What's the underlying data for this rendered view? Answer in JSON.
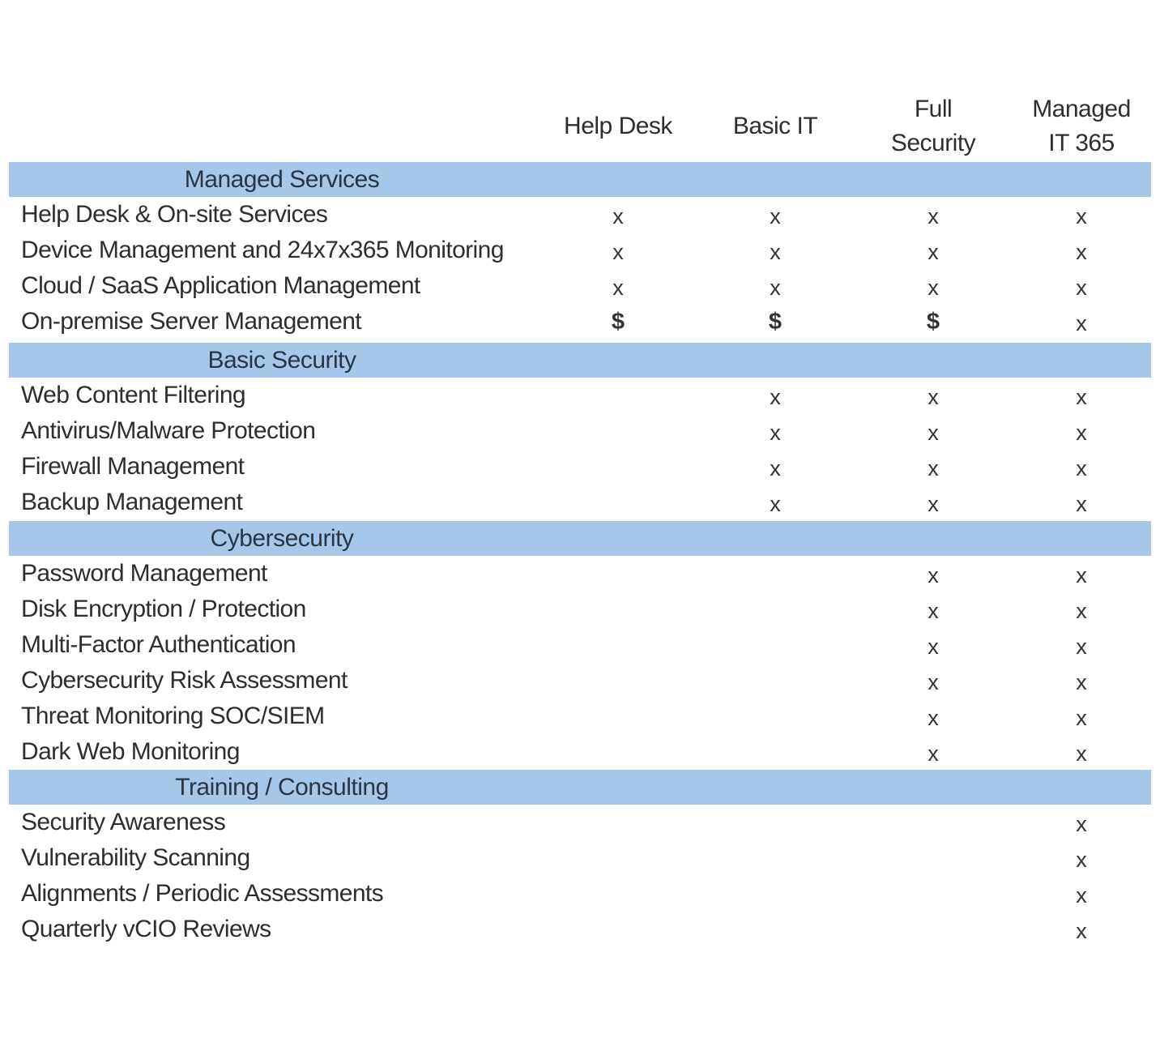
{
  "columns": [
    {
      "id": "help-desk",
      "label": "Help Desk"
    },
    {
      "id": "basic-it",
      "label": "Basic IT"
    },
    {
      "id": "full-security",
      "label": "Full\nSecurity"
    },
    {
      "id": "managed-it-365",
      "label": "Managed\nIT 365"
    }
  ],
  "sections": [
    {
      "title": "Managed Services",
      "rows": [
        {
          "label": "Help Desk & On-site Services",
          "values": [
            "x",
            "x",
            "x",
            "x"
          ]
        },
        {
          "label": "Device Management and 24x7x365 Monitoring",
          "values": [
            "x",
            "x",
            "x",
            "x"
          ]
        },
        {
          "label": "Cloud / SaaS Application Management",
          "values": [
            "x",
            "x",
            "x",
            "x"
          ]
        },
        {
          "label": "On-premise Server Management",
          "values": [
            "$",
            "$",
            "$",
            "x"
          ]
        }
      ]
    },
    {
      "title": "Basic Security",
      "rows": [
        {
          "label": "Web Content Filtering",
          "values": [
            "",
            "x",
            "x",
            "x"
          ]
        },
        {
          "label": "Antivirus/Malware Protection",
          "values": [
            "",
            "x",
            "x",
            "x"
          ]
        },
        {
          "label": "Firewall Management",
          "values": [
            "",
            "x",
            "x",
            "x"
          ]
        },
        {
          "label": "Backup Management",
          "values": [
            "",
            "x",
            "x",
            "x"
          ]
        }
      ]
    },
    {
      "title": "Cybersecurity",
      "rows": [
        {
          "label": "Password Management",
          "values": [
            "",
            "",
            "x",
            "x"
          ]
        },
        {
          "label": "Disk Encryption / Protection",
          "values": [
            "",
            "",
            "x",
            "x"
          ]
        },
        {
          "label": "Multi-Factor Authentication",
          "values": [
            "",
            "",
            "x",
            "x"
          ]
        },
        {
          "label": "Cybersecurity Risk Assessment",
          "values": [
            "",
            "",
            "x",
            "x"
          ]
        },
        {
          "label": "Threat Monitoring SOC/SIEM",
          "values": [
            "",
            "",
            "x",
            "x"
          ]
        },
        {
          "label": "Dark Web Monitoring",
          "values": [
            "",
            "",
            "x",
            "x"
          ]
        }
      ]
    },
    {
      "title": "Training / Consulting",
      "rows": [
        {
          "label": "Security Awareness",
          "values": [
            "",
            "",
            "",
            "x"
          ]
        },
        {
          "label": "Vulnerability Scanning",
          "values": [
            "",
            "",
            "",
            "x"
          ]
        },
        {
          "label": "Alignments / Periodic Assessments",
          "values": [
            "",
            "",
            "",
            "x"
          ]
        },
        {
          "label": "Quarterly vCIO Reviews",
          "values": [
            "",
            "",
            "",
            "x"
          ]
        }
      ]
    }
  ],
  "colors": {
    "section_bar": "#a6c7ea",
    "text": "#2e2e2e",
    "background": "#ffffff"
  }
}
